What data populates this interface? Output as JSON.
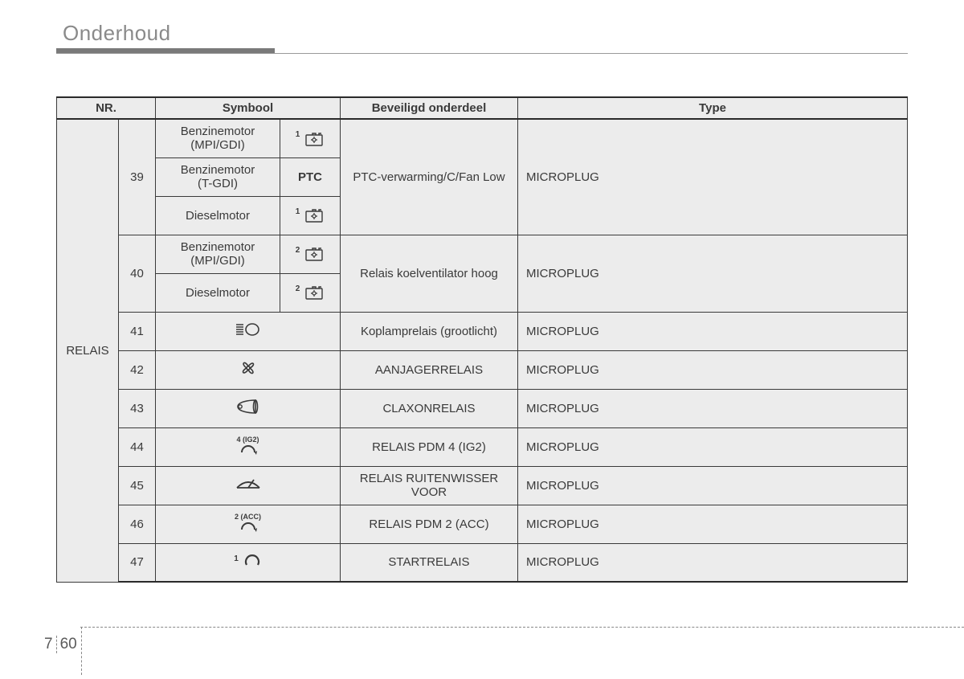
{
  "header": {
    "title": "Onderhoud"
  },
  "table": {
    "columns": {
      "nr": "NR.",
      "symbool": "Symbool",
      "bev": "Beveiligd onderdeel",
      "type": "Type"
    },
    "group_label": "RELAIS",
    "rows": [
      {
        "nr": "39",
        "engines": [
          {
            "label_top": "Benzinemotor",
            "label_bot": "(MPI/GDI)",
            "sym_super": "1",
            "sym_kind": "puzzle"
          },
          {
            "label_top": "Benzinemotor",
            "label_bot": "(T-GDI)",
            "sym_text": "PTC"
          },
          {
            "label_top": "Dieselmotor",
            "label_bot": "",
            "sym_super": "1",
            "sym_kind": "puzzle"
          }
        ],
        "bev": "PTC-verwarming/C/Fan Low",
        "type": "MICROPLUG"
      },
      {
        "nr": "40",
        "engines": [
          {
            "label_top": "Benzinemotor",
            "label_bot": "(MPI/GDI)",
            "sym_super": "2",
            "sym_kind": "puzzle"
          },
          {
            "label_top": "Dieselmotor",
            "label_bot": "",
            "sym_super": "2",
            "sym_kind": "puzzle"
          }
        ],
        "bev": "Relais koelventilator hoog",
        "type": "MICROPLUG"
      },
      {
        "nr": "41",
        "sym_kind": "headlight",
        "bev": "Koplamprelais (grootlicht)",
        "type": "MICROPLUG"
      },
      {
        "nr": "42",
        "sym_kind": "fan",
        "bev": "AANJAGERRELAIS",
        "type": "MICROPLUG"
      },
      {
        "nr": "43",
        "sym_kind": "horn",
        "bev": "CLAXONRELAIS",
        "type": "MICROPLUG"
      },
      {
        "nr": "44",
        "sym_kind": "cycle",
        "sym_super": "4 (IG2)",
        "bev": "RELAIS PDM 4 (IG2)",
        "type": "MICROPLUG"
      },
      {
        "nr": "45",
        "sym_kind": "wiper",
        "bev": "RELAIS RUITENWISSER VOOR",
        "type": "MICROPLUG"
      },
      {
        "nr": "46",
        "sym_kind": "cycle",
        "sym_super": "2 (ACC)",
        "bev": "RELAIS PDM 2 (ACC)",
        "type": "MICROPLUG"
      },
      {
        "nr": "47",
        "sym_kind": "cycle-open",
        "sym_super": "1",
        "bev": "STARTRELAIS",
        "type": "MICROPLUG"
      }
    ]
  },
  "footer": {
    "chapter": "7",
    "page": "60"
  }
}
